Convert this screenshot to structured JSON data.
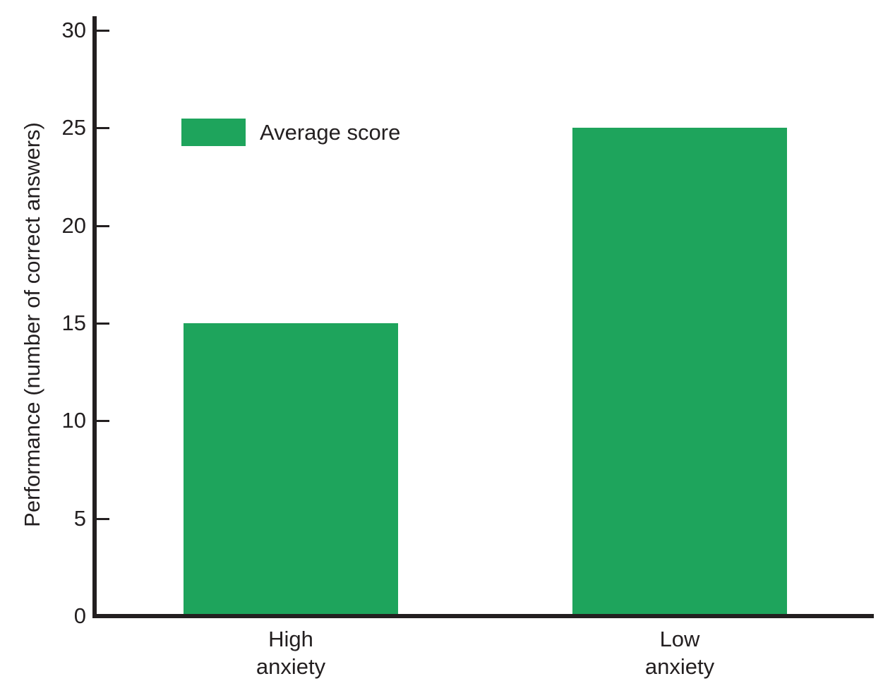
{
  "chart_data": {
    "type": "bar",
    "title": "",
    "categories": [
      "High anxiety",
      "Low anxiety"
    ],
    "series": [
      {
        "name": "Average score",
        "values": [
          15,
          25
        ]
      }
    ],
    "legend": {
      "label": "Average score",
      "position": "top-left"
    },
    "xlabel": "",
    "ylabel": "Performance (number of correct answers)",
    "ylim": [
      0,
      30
    ],
    "yticks": [
      0,
      5,
      10,
      15,
      20,
      25,
      30
    ],
    "grid": false,
    "colors": {
      "bar": "#1EA45C",
      "axis": "#231F20",
      "text": "#231F20",
      "background": "#FFFFFF"
    }
  }
}
